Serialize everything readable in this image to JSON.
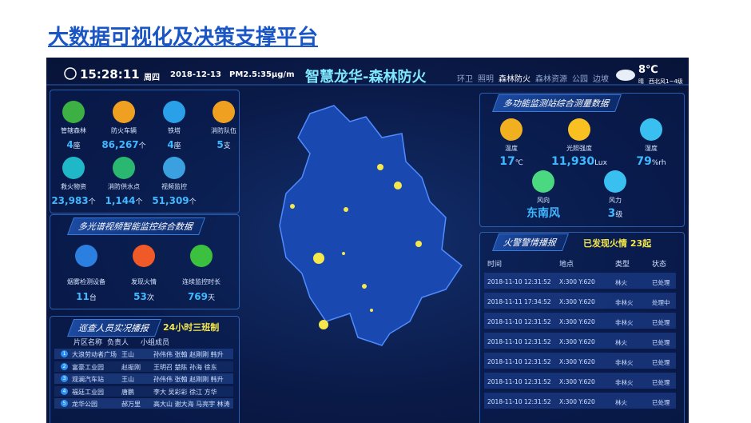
{
  "title": "大数据可视化及决策支撑平台",
  "header": {
    "time": "15:28:11",
    "weekday": "周四",
    "date": "2018-12-13",
    "pm25": "PM2.5:35μg/m",
    "dashboard_title": "智慧龙华-森林防火",
    "nav": [
      "环卫",
      "照明",
      "森林防火",
      "森林资源",
      "公园",
      "边坡"
    ],
    "weather": {
      "temp": "8℃",
      "condition": "晴",
      "wind": "西北风1~4级"
    }
  },
  "resources": [
    {
      "label": "管辖森林",
      "value": "4",
      "unit": "座"
    },
    {
      "label": "防火车辆",
      "value": "86,267",
      "unit": "个"
    },
    {
      "label": "铁塔",
      "value": "4",
      "unit": "座"
    },
    {
      "label": "消防队伍",
      "value": "5",
      "unit": "支"
    },
    {
      "label": "救火物资",
      "value": "23,983",
      "unit": "个"
    },
    {
      "label": "消防供水点",
      "value": "1,144",
      "unit": "个"
    },
    {
      "label": "视频监控",
      "value": "51,309",
      "unit": "个"
    }
  ],
  "multispectral": {
    "title": "多光谱视频智能监控综合数据",
    "items": [
      {
        "label": "烟雾检测设备",
        "value": "11",
        "unit": "台"
      },
      {
        "label": "发现火情",
        "value": "53",
        "unit": "次"
      },
      {
        "label": "连续监控时长",
        "value": "769",
        "unit": "天"
      }
    ]
  },
  "patrol": {
    "title": "巡查人员实况播报",
    "note": "24小时三班制",
    "columns": [
      "片区名称",
      "负责人",
      "小组成员"
    ],
    "rows": [
      [
        "1",
        "大浪劳动者广场",
        "王山",
        "孙伟伟 张翰 赵刚刚 韩升"
      ],
      [
        "2",
        "富豪工业园",
        "赵振刚",
        "王明召 楚陈 孙海 徐东"
      ],
      [
        "3",
        "观澜汽车站",
        "王山",
        "孙伟伟 张翰 赵刚刚 韩升"
      ],
      [
        "4",
        "福廷工业园",
        "唐鹏",
        "李大 吴彩彩 徐江 方华"
      ],
      [
        "5",
        "龙华公园",
        "郝万里",
        "高大山 谢大海 马亮宇 林涛"
      ]
    ]
  },
  "monitoring": {
    "title": "多功能监测站综合测量数据",
    "items": [
      {
        "label": "温度",
        "value": "17",
        "unit": "℃"
      },
      {
        "label": "光照强度",
        "value": "11,930",
        "unit": "Lux"
      },
      {
        "label": "湿度",
        "value": "79",
        "unit": "%rh"
      },
      {
        "label": "风向",
        "value": "东南风",
        "unit": ""
      },
      {
        "label": "风力",
        "value": "3",
        "unit": "级"
      }
    ]
  },
  "fire_alerts": {
    "title": "火警警情播报",
    "summary": "已发现火情 23起",
    "columns": [
      "时间",
      "地点",
      "类型",
      "状态"
    ],
    "rows": [
      [
        "2018-11-10 12:31:52",
        "X:300 Y:620",
        "林火",
        "已处理"
      ],
      [
        "2018-11-11 17:34:52",
        "X:300 Y:620",
        "非林火",
        "处理中"
      ],
      [
        "2018-11-10 12:31:52",
        "X:300 Y:620",
        "非林火",
        "已处理"
      ],
      [
        "2018-11-10 12:31:52",
        "X:300 Y:620",
        "林火",
        "已处理"
      ],
      [
        "2018-11-10 12:31:52",
        "X:300 Y:620",
        "非林火",
        "已处理"
      ],
      [
        "2018-11-10 12:31:52",
        "X:300 Y:620",
        "非林火",
        "已处理"
      ],
      [
        "2018-11-10 12:31:52",
        "X:300 Y:620",
        "林火",
        "已处理"
      ]
    ]
  }
}
